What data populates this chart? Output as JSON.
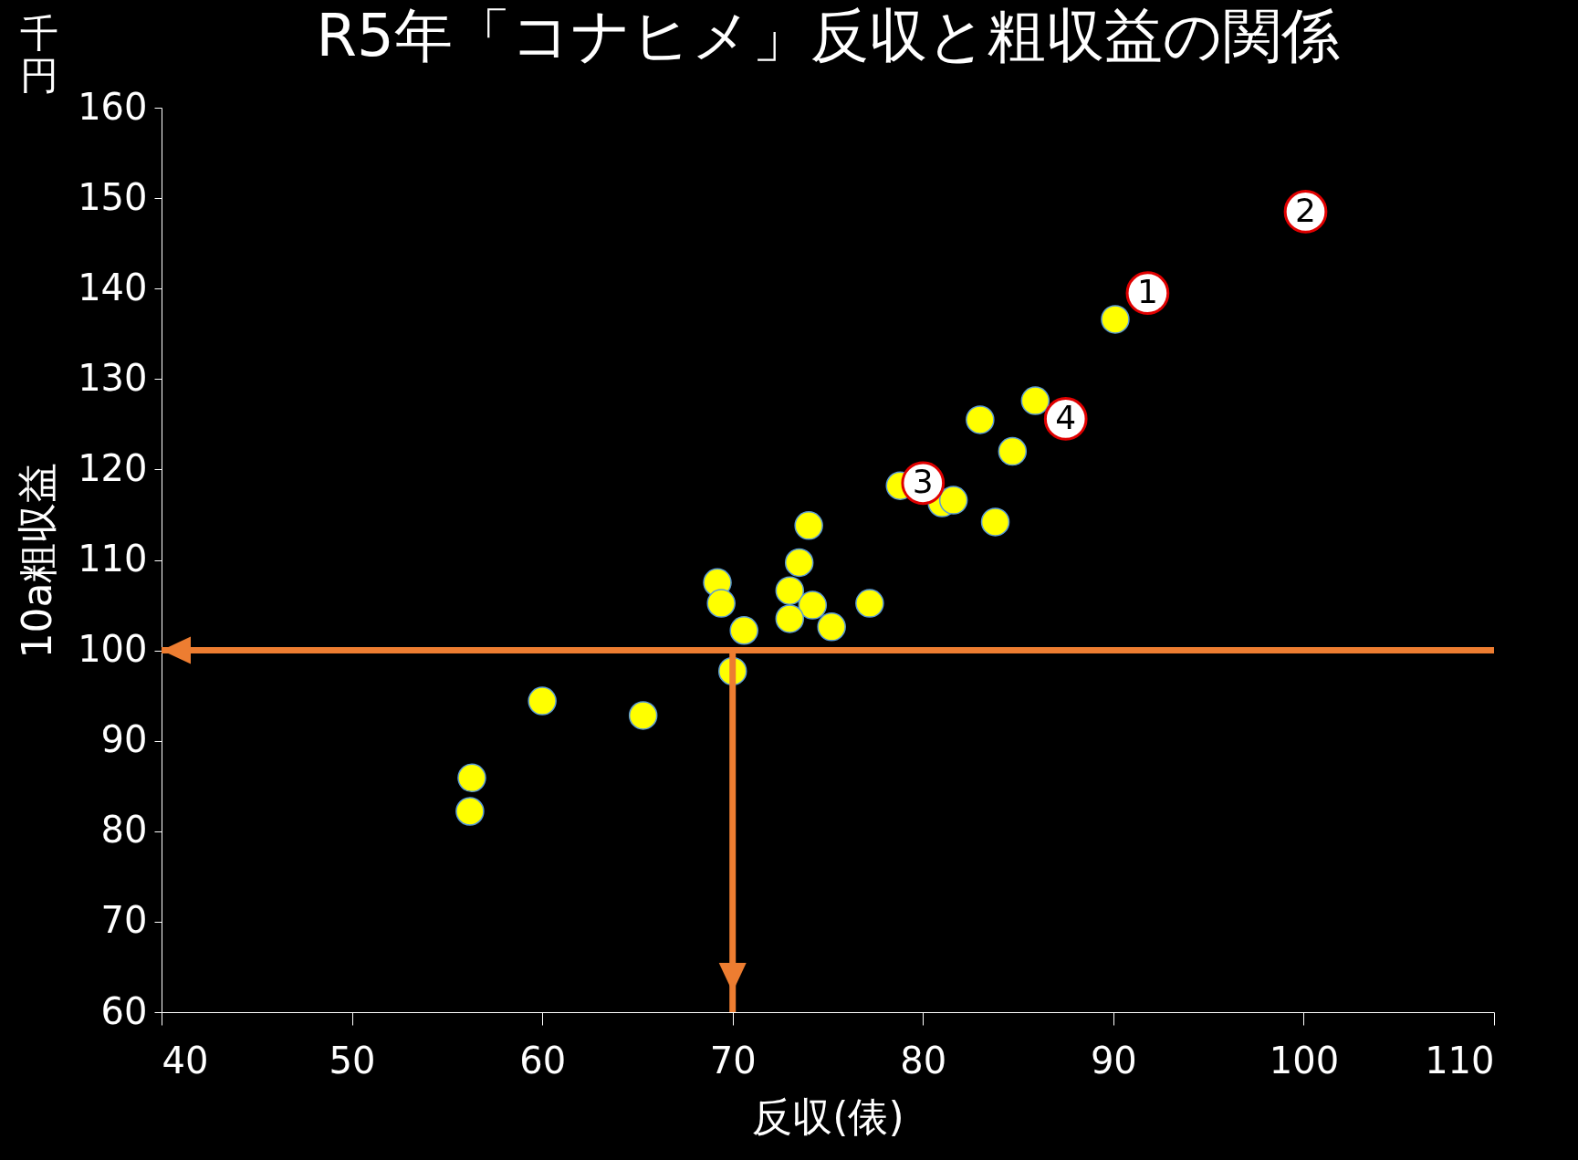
{
  "chart_data": {
    "type": "scatter",
    "title": "R5年「コナヒメ」反収と粗収益の関係",
    "xlabel": "反収(俵)",
    "ylabel": "10a粗収益",
    "x": [
      90.1,
      85.9,
      83.0,
      84.7,
      78.8,
      81.0,
      81.6,
      83.8,
      74.0,
      73.5,
      69.2,
      73.0,
      69.4,
      74.2,
      77.2,
      73.0,
      75.2,
      70.6,
      70.0,
      60.0,
      65.3,
      56.3,
      56.2
    ],
    "series": [
      {
        "color": "#ffff00",
        "values": [
          136.6,
          127.6,
          125.5,
          122.0,
          118.2,
          116.3,
          116.6,
          114.2,
          113.8,
          109.7,
          107.5,
          106.6,
          105.2,
          105.0,
          105.2,
          103.5,
          102.6,
          102.2,
          97.7,
          94.4,
          92.8,
          85.9,
          82.2
        ]
      },
      {
        "name": "1",
        "color": "#ffffff",
        "x": [
          91.8
        ],
        "values": [
          139.5
        ]
      },
      {
        "name": "2",
        "color": "#ffffff",
        "x": [
          100.1
        ],
        "values": [
          148.5
        ]
      },
      {
        "name": "3",
        "color": "#ffffff",
        "x": [
          80.0
        ],
        "values": [
          118.5
        ]
      },
      {
        "name": "4",
        "color": "#ffffff",
        "x": [
          87.5
        ],
        "values": [
          125.6
        ]
      }
    ],
    "xlim": [
      40,
      110
    ],
    "xticks": [
      40,
      50,
      60,
      70,
      80,
      90,
      100,
      110
    ],
    "ylim": [
      60,
      160
    ],
    "yticks": [
      60,
      70,
      80,
      90,
      100,
      110,
      120,
      130,
      140,
      150,
      160
    ],
    "marker": "circle",
    "grid": false,
    "ref_lines": [
      {
        "axis": "y",
        "value": 100,
        "color": "#ed7d31"
      },
      {
        "axis": "x",
        "value": 70,
        "color": "#ed7d31"
      }
    ],
    "annotations": [
      "千円"
    ]
  }
}
